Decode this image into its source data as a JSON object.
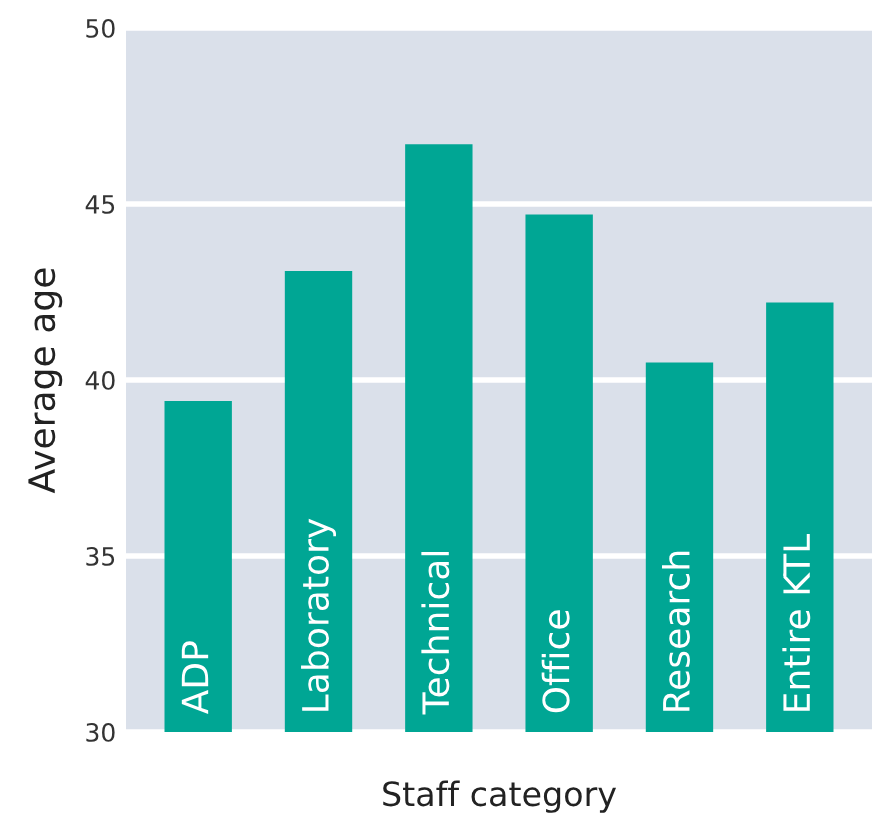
{
  "chart_data": {
    "type": "bar",
    "xlabel": "Staff category",
    "ylabel": "Average age",
    "categories": [
      "ADP",
      "Laboratory",
      "Technical",
      "Office",
      "Research",
      "Entire KTL"
    ],
    "values": [
      39.4,
      43.1,
      46.7,
      44.7,
      40.5,
      42.2
    ],
    "color": "#00a694",
    "ylim": [
      30,
      50
    ],
    "yticks": [
      30,
      35,
      40,
      45,
      50
    ],
    "grid": "y"
  }
}
